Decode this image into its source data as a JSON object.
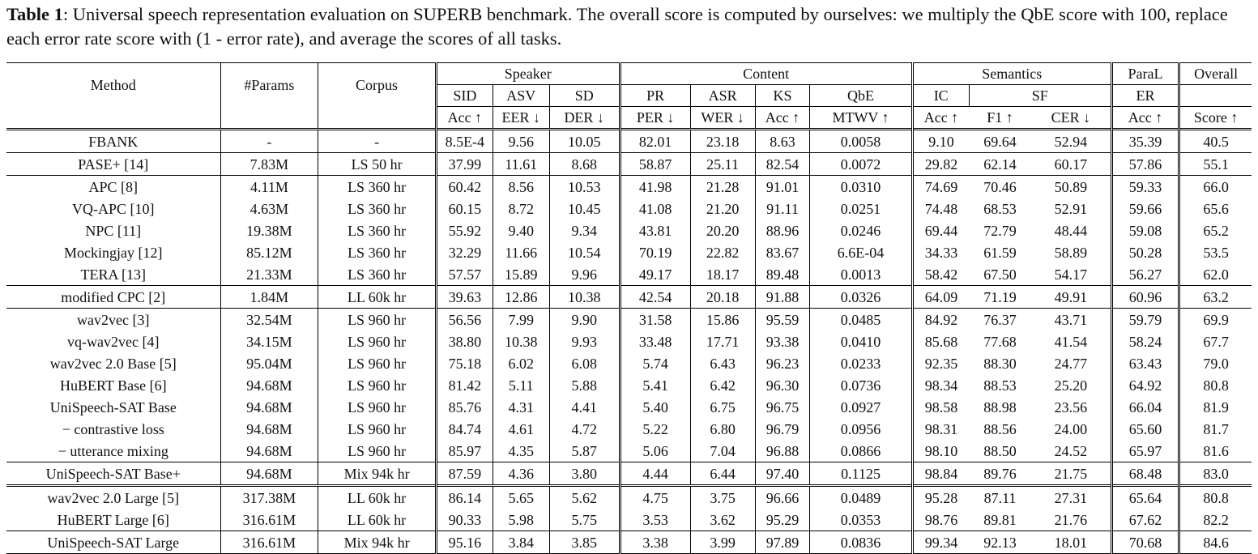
{
  "caption": {
    "label": "Table 1",
    "text": ": Universal speech representation evaluation on SUPERB benchmark. The overall score is computed by ourselves: we multiply the QbE score with 100, replace each error rate score with (1 - error rate), and average the scores of all tasks."
  },
  "header": {
    "method": "Method",
    "params": "#Params",
    "corpus": "Corpus",
    "groups": [
      "Speaker",
      "Content",
      "Semantics",
      "ParaL",
      "Overall"
    ],
    "tasks": [
      "SID",
      "ASV",
      "SD",
      "PR",
      "ASR",
      "KS",
      "QbE",
      "IC",
      "SF",
      "ER"
    ],
    "metrics": [
      "Acc ↑",
      "EER ↓",
      "DER ↓",
      "PER ↓",
      "WER ↓",
      "Acc ↑",
      "MTWV ↑",
      "Acc ↑",
      "F1 ↑",
      "CER ↓",
      "Acc ↑",
      "Score ↑"
    ]
  },
  "rows": [
    {
      "method": "FBANK",
      "params": "-",
      "corpus": "-",
      "v": [
        "8.5E-4",
        "9.56",
        "10.05",
        "82.01",
        "23.18",
        "8.63",
        "0.0058",
        "9.10",
        "69.64",
        "52.94",
        "35.39",
        "40.5"
      ],
      "b": [],
      "div": "double",
      "indent": false
    },
    {
      "method": "PASE+ [14]",
      "params": "7.83M",
      "corpus": "LS 50 hr",
      "v": [
        "37.99",
        "11.61",
        "8.68",
        "58.87",
        "25.11",
        "82.54",
        "0.0072",
        "29.82",
        "62.14",
        "60.17",
        "57.86",
        "55.1"
      ],
      "b": [],
      "div": "line",
      "indent": false
    },
    {
      "method": "APC [8]",
      "params": "4.11M",
      "corpus": "LS 360 hr",
      "v": [
        "60.42",
        "8.56",
        "10.53",
        "41.98",
        "21.28",
        "91.01",
        "0.0310",
        "74.69",
        "70.46",
        "50.89",
        "59.33",
        "66.0"
      ],
      "b": [],
      "div": "line",
      "indent": false
    },
    {
      "method": "VQ-APC [10]",
      "params": "4.63M",
      "corpus": "LS 360 hr",
      "v": [
        "60.15",
        "8.72",
        "10.45",
        "41.08",
        "21.20",
        "91.11",
        "0.0251",
        "74.48",
        "68.53",
        "52.91",
        "59.66",
        "65.6"
      ],
      "b": [],
      "div": "none",
      "indent": false
    },
    {
      "method": "NPC [11]",
      "params": "19.38M",
      "corpus": "LS 360 hr",
      "v": [
        "55.92",
        "9.40",
        "9.34",
        "43.81",
        "20.20",
        "88.96",
        "0.0246",
        "69.44",
        "72.79",
        "48.44",
        "59.08",
        "65.2"
      ],
      "b": [],
      "div": "none",
      "indent": false
    },
    {
      "method": "Mockingjay [12]",
      "params": "85.12M",
      "corpus": "LS 360 hr",
      "v": [
        "32.29",
        "11.66",
        "10.54",
        "70.19",
        "22.82",
        "83.67",
        "6.6E-04",
        "34.33",
        "61.59",
        "58.89",
        "50.28",
        "53.5"
      ],
      "b": [],
      "div": "none",
      "indent": false
    },
    {
      "method": "TERA [13]",
      "params": "21.33M",
      "corpus": "LS 360 hr",
      "v": [
        "57.57",
        "15.89",
        "9.96",
        "49.17",
        "18.17",
        "89.48",
        "0.0013",
        "58.42",
        "67.50",
        "54.17",
        "56.27",
        "62.0"
      ],
      "b": [],
      "div": "none",
      "indent": false
    },
    {
      "method": "modified CPC [2]",
      "params": "1.84M",
      "corpus": "LL 60k hr",
      "v": [
        "39.63",
        "12.86",
        "10.38",
        "42.54",
        "20.18",
        "91.88",
        "0.0326",
        "64.09",
        "71.19",
        "49.91",
        "60.96",
        "63.2"
      ],
      "b": [],
      "div": "line",
      "indent": false
    },
    {
      "method": "wav2vec [3]",
      "params": "32.54M",
      "corpus": "LS 960 hr",
      "v": [
        "56.56",
        "7.99",
        "9.90",
        "31.58",
        "15.86",
        "95.59",
        "0.0485",
        "84.92",
        "76.37",
        "43.71",
        "59.79",
        "69.9"
      ],
      "b": [],
      "div": "line",
      "indent": false
    },
    {
      "method": "vq-wav2vec [4]",
      "params": "34.15M",
      "corpus": "LS 960 hr",
      "v": [
        "38.80",
        "10.38",
        "9.93",
        "33.48",
        "17.71",
        "93.38",
        "0.0410",
        "85.68",
        "77.68",
        "41.54",
        "58.24",
        "67.7"
      ],
      "b": [],
      "div": "none",
      "indent": false
    },
    {
      "method": "wav2vec 2.0 Base [5]",
      "params": "95.04M",
      "corpus": "LS 960 hr",
      "v": [
        "75.18",
        "6.02",
        "6.08",
        "5.74",
        "6.43",
        "96.23",
        "0.0233",
        "92.35",
        "88.30",
        "24.77",
        "63.43",
        "79.0"
      ],
      "b": [],
      "div": "none",
      "indent": false
    },
    {
      "method": "HuBERT Base [6]",
      "params": "94.68M",
      "corpus": "LS 960 hr",
      "v": [
        "81.42",
        "5.11",
        "5.88",
        "5.41",
        "6.42",
        "96.30",
        "0.0736",
        "98.34",
        "88.53",
        "25.20",
        "64.92",
        "80.8"
      ],
      "b": [
        4
      ],
      "div": "none",
      "indent": false
    },
    {
      "method": "UniSpeech-SAT Base",
      "params": "94.68M",
      "corpus": "LS 960 hr",
      "v": [
        "85.76",
        "4.31",
        "4.41",
        "5.40",
        "6.75",
        "96.75",
        "0.0927",
        "98.58",
        "88.98",
        "23.56",
        "66.04",
        "81.9"
      ],
      "b": [
        1
      ],
      "div": "none",
      "indent": false
    },
    {
      "method": "− contrastive loss",
      "params": "94.68M",
      "corpus": "LS 960 hr",
      "v": [
        "84.74",
        "4.61",
        "4.72",
        "5.22",
        "6.80",
        "96.79",
        "0.0956",
        "98.31",
        "88.56",
        "24.00",
        "65.60",
        "81.7"
      ],
      "b": [],
      "div": "none",
      "indent": true
    },
    {
      "method": "− utterance mixing",
      "params": "94.68M",
      "corpus": "LS 960 hr",
      "v": [
        "85.97",
        "4.35",
        "5.87",
        "5.06",
        "7.04",
        "96.88",
        "0.0866",
        "98.10",
        "88.50",
        "24.52",
        "65.97",
        "81.6"
      ],
      "b": [],
      "div": "none",
      "indent": true
    },
    {
      "method": "UniSpeech-SAT Base+",
      "params": "94.68M",
      "corpus": "Mix 94k hr",
      "v": [
        "87.59",
        "4.36",
        "3.80",
        "4.44",
        "6.44",
        "97.40",
        "0.1125",
        "98.84",
        "89.76",
        "21.75",
        "68.48",
        "83.0"
      ],
      "b": [
        0,
        2,
        3,
        5,
        6,
        7,
        8,
        9,
        10,
        11
      ],
      "div": "line",
      "indent": false
    },
    {
      "method": "wav2vec 2.0 Large [5]",
      "params": "317.38M",
      "corpus": "LL 60k hr",
      "v": [
        "86.14",
        "5.65",
        "5.62",
        "4.75",
        "3.75",
        "96.66",
        "0.0489",
        "95.28",
        "87.11",
        "27.31",
        "65.64",
        "80.8"
      ],
      "b": [],
      "div": "double",
      "indent": false
    },
    {
      "method": "HuBERT Large [6]",
      "params": "316.61M",
      "corpus": "LL 60k hr",
      "v": [
        "90.33",
        "5.98",
        "5.75",
        "3.53",
        "3.62",
        "95.29",
        "0.0353",
        "98.76",
        "89.81",
        "21.76",
        "67.62",
        "82.2"
      ],
      "b": [
        4
      ],
      "div": "none",
      "indent": false
    },
    {
      "method": "UniSpeech-SAT Large",
      "params": "316.61M",
      "corpus": "Mix 94k hr",
      "v": [
        "95.16",
        "3.84",
        "3.85",
        "3.38",
        "3.99",
        "97.89",
        "0.0836",
        "99.34",
        "92.13",
        "18.01",
        "70.68",
        "84.6"
      ],
      "b": [
        0,
        1,
        2,
        3,
        5,
        6,
        7,
        8,
        9,
        10,
        11
      ],
      "div": "line",
      "indent": false
    }
  ]
}
